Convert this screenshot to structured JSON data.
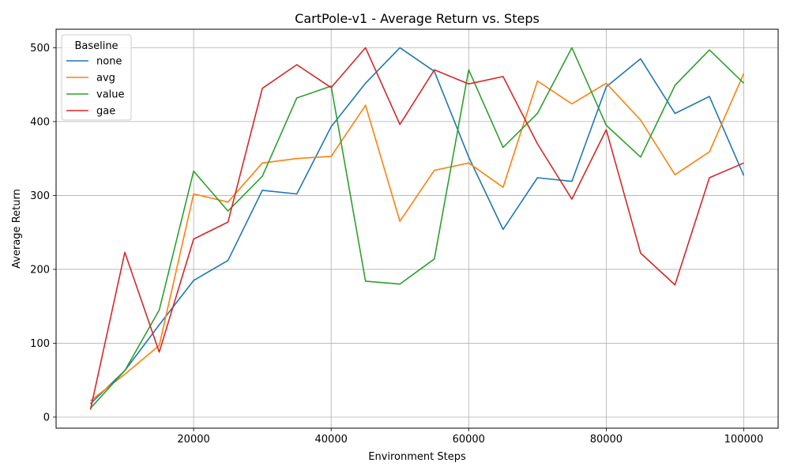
{
  "chart_data": {
    "type": "line",
    "title": "CartPole-v1 - Average Return vs. Steps",
    "xlabel": "Environment Steps",
    "ylabel": "Average Return",
    "xlim": [
      0,
      105000
    ],
    "ylim": [
      -15,
      525
    ],
    "xticks": [
      20000,
      40000,
      60000,
      80000,
      100000
    ],
    "yticks": [
      0,
      100,
      200,
      300,
      400,
      500
    ],
    "grid": true,
    "legend_title": "Baseline",
    "legend_position": "top-left",
    "x": [
      5000,
      10000,
      15000,
      20000,
      25000,
      30000,
      35000,
      40000,
      45000,
      50000,
      55000,
      60000,
      65000,
      70000,
      75000,
      80000,
      85000,
      90000,
      95000,
      100000
    ],
    "series": [
      {
        "name": "none",
        "color": "#1f77b4",
        "values": [
          18,
          63,
          125,
          185,
          212,
          307,
          302,
          393,
          452,
          500,
          468,
          352,
          254,
          324,
          319,
          447,
          485,
          411,
          434,
          327
        ]
      },
      {
        "name": "avg",
        "color": "#ff7f0e",
        "values": [
          22,
          58,
          97,
          302,
          291,
          344,
          350,
          353,
          422,
          265,
          334,
          344,
          311,
          455,
          424,
          452,
          402,
          328,
          359,
          465
        ]
      },
      {
        "name": "value",
        "color": "#2ca02c",
        "values": [
          12,
          63,
          145,
          333,
          279,
          326,
          432,
          448,
          184,
          180,
          214,
          470,
          365,
          411,
          500,
          395,
          352,
          449,
          497,
          452
        ]
      },
      {
        "name": "gae",
        "color": "#d62728",
        "values": [
          10,
          223,
          88,
          241,
          264,
          445,
          477,
          446,
          500,
          396,
          470,
          451,
          461,
          370,
          295,
          389,
          222,
          179,
          324,
          344
        ]
      }
    ]
  }
}
